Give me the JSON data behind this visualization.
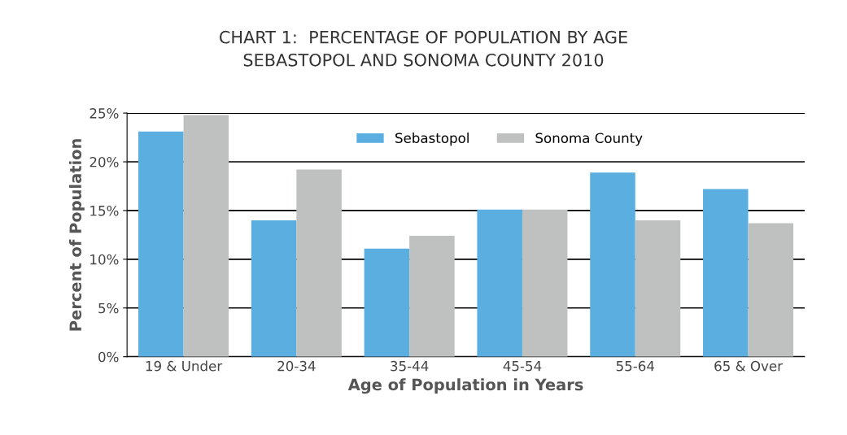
{
  "chart_data": {
    "type": "bar",
    "title": "CHART 1:  PERCENTAGE OF POPULATION BY AGE\nSEBASTOPOL AND SONOMA COUNTY 2010",
    "xlabel": "Age of Population in Years",
    "ylabel": "Percent of Population",
    "categories": [
      "19 & Under",
      "20-34",
      "35-44",
      "45-54",
      "55-64",
      "65 & Over"
    ],
    "series": [
      {
        "name": "Sebastopol",
        "color": "#5aaee0",
        "values": [
          23.1,
          14,
          11.1,
          15.1,
          18.9,
          17.2
        ]
      },
      {
        "name": "Sonoma County",
        "color": "#bfc1c0",
        "values": [
          24.8,
          19.2,
          12.4,
          15.1,
          14,
          13.7
        ]
      }
    ],
    "ylim": [
      0,
      25
    ],
    "yticks": [
      {
        "value": 0,
        "label": "0%"
      },
      {
        "value": 5,
        "label": "5%"
      },
      {
        "value": 10,
        "label": "10%"
      },
      {
        "value": 15,
        "label": "15%"
      },
      {
        "value": 20,
        "label": "20%"
      },
      {
        "value": 25,
        "label": "25%"
      }
    ],
    "grid": "y",
    "legend": "top"
  }
}
